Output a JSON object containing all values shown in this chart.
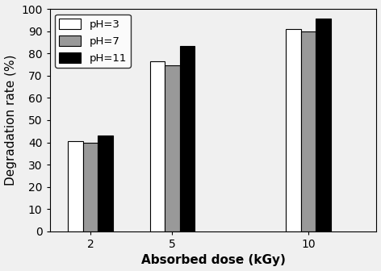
{
  "categories": [
    2,
    5,
    10
  ],
  "series": [
    {
      "label": "pH=3",
      "values": [
        40.5,
        76.5,
        91.0
      ],
      "color": "#ffffff",
      "edgecolor": "#000000"
    },
    {
      "label": "pH=7",
      "values": [
        40.0,
        74.5,
        90.0
      ],
      "color": "#999999",
      "edgecolor": "#000000"
    },
    {
      "label": "pH=11",
      "values": [
        43.0,
        83.5,
        95.5
      ],
      "color": "#000000",
      "edgecolor": "#000000"
    }
  ],
  "xlabel": "Absorbed dose (kGy)",
  "ylabel": "Degradation rate (%)",
  "ylim": [
    0,
    100
  ],
  "yticks": [
    0,
    10,
    20,
    30,
    40,
    50,
    60,
    70,
    80,
    90,
    100
  ],
  "bar_width": 0.55,
  "legend_loc": "upper left",
  "background_color": "#f0f0f0",
  "axis_fontsize": 11,
  "tick_fontsize": 10,
  "legend_fontsize": 9.5
}
